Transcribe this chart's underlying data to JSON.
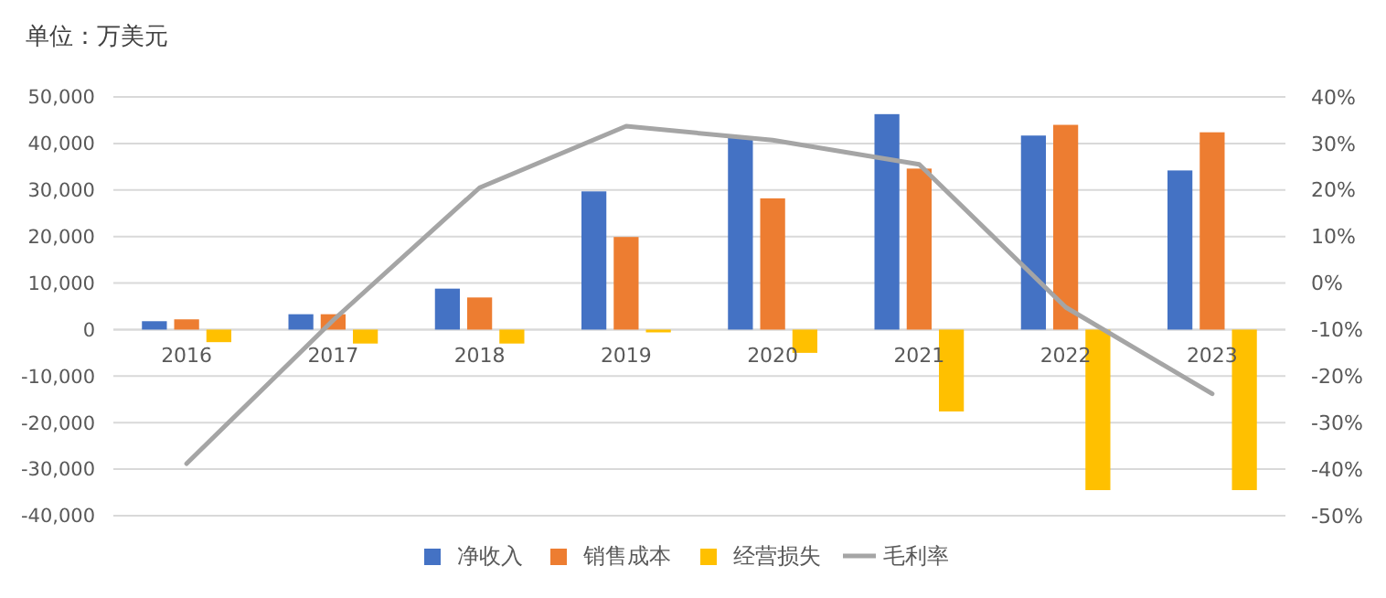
{
  "chart_data": {
    "type": "bar",
    "title": "单位：万美元",
    "categories": [
      "2016",
      "2017",
      "2018",
      "2019",
      "2020",
      "2021",
      "2022",
      "2023"
    ],
    "series": [
      {
        "name": "净收入",
        "color": "#4472c4",
        "values": [
          1800,
          3300,
          8800,
          29700,
          41200,
          46300,
          41700,
          34200
        ]
      },
      {
        "name": "销售成本",
        "color": "#ed7d31",
        "values": [
          2200,
          3300,
          6900,
          19900,
          28200,
          34600,
          44000,
          42400
        ]
      },
      {
        "name": "经营损失",
        "color": "#ffc000",
        "values": [
          -2700,
          -3000,
          -3000,
          -600,
          -5000,
          -17600,
          -34500,
          -34500
        ]
      },
      {
        "name": "毛利率",
        "color": "#a5a5a5",
        "type": "line",
        "axis": "y2",
        "values": [
          -38.8,
          -8,
          20.5,
          33.7,
          30.7,
          25.5,
          -5.2,
          -23.8
        ]
      }
    ],
    "ylim": [
      -40000,
      50000
    ],
    "yticks": [
      {
        "value": -40000,
        "label": "-40,000"
      },
      {
        "value": -30000,
        "label": "-30,000"
      },
      {
        "value": -20000,
        "label": "-20,000"
      },
      {
        "value": -10000,
        "label": "-10,000"
      },
      0,
      {
        "value": 10000,
        "label": "10,000"
      },
      {
        "value": 20000,
        "label": "20,000"
      },
      {
        "value": 30000,
        "label": "30,000"
      },
      {
        "value": 40000,
        "label": "40,000"
      },
      {
        "value": 50000,
        "label": "50,000"
      }
    ],
    "y2lim": [
      -50,
      40
    ],
    "y2ticks": [
      {
        "value": -50,
        "label": "-50%"
      },
      {
        "value": -40,
        "label": "-40%"
      },
      {
        "value": -30,
        "label": "-30%"
      },
      {
        "value": -20,
        "label": "-20%"
      },
      {
        "value": -10,
        "label": "-10%"
      },
      {
        "value": 0,
        "label": "0%"
      },
      {
        "value": 10,
        "label": "10%"
      },
      {
        "value": 20,
        "label": "20%"
      },
      {
        "value": 30,
        "label": "30%"
      },
      {
        "value": 40,
        "label": "40%"
      }
    ],
    "grid": "y",
    "legend": "bottom",
    "marker": "none",
    "line_style": "solid"
  }
}
